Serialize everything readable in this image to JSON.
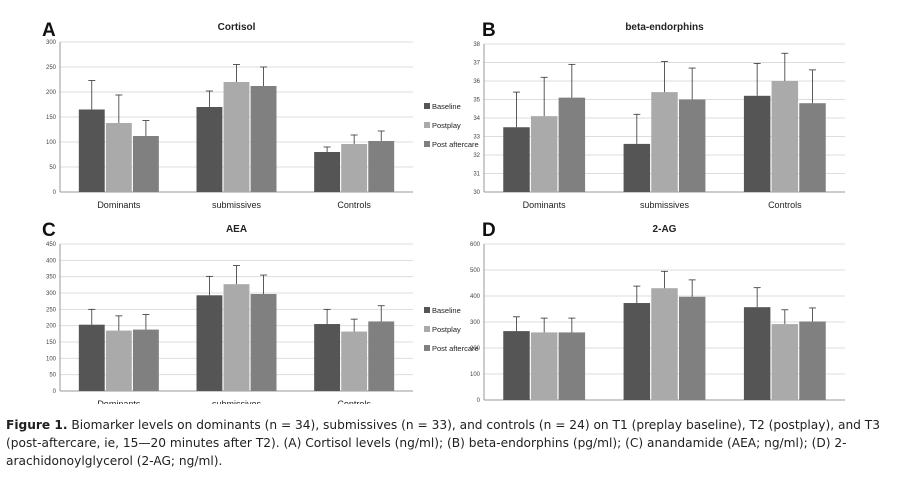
{
  "caption": {
    "label": "Figure 1.",
    "text": "Biomarker levels on dominants (n = 34), submissives (n = 33), and controls (n = 24) on T1 (preplay baseline), T2 (postplay), and T3 (post-aftercare, ie, 15—20 minutes after T2). (A) Cortisol levels (ng/ml); (B) beta-endorphins (pg/ml); (C) anandamide (AEA; ng/ml); (D) 2-arachidonoylglycerol (2-AG; ng/ml)."
  },
  "colors": {
    "baseline": "#555555",
    "postplay": "#aaaaaa",
    "post_aftercare": "#808080",
    "grid": "#dddddd",
    "axis": "#999999"
  },
  "chart_data": [
    {
      "panel": "A",
      "type": "bar",
      "title": "Cortisol",
      "categories": [
        "Dominants",
        "submissives",
        "Controls"
      ],
      "ylim": [
        0,
        300
      ],
      "yticks": [
        0,
        50,
        100,
        150,
        200,
        250,
        300
      ],
      "grid": true,
      "legend": "right",
      "series": [
        {
          "name": "Baseline",
          "values": [
            165,
            170,
            80
          ],
          "errors": [
            58,
            32,
            10
          ]
        },
        {
          "name": "Postplay",
          "values": [
            138,
            220,
            96
          ],
          "errors": [
            56,
            35,
            18
          ]
        },
        {
          "name": "Post aftercare",
          "values": [
            112,
            212,
            102
          ],
          "errors": [
            31,
            38,
            20
          ]
        }
      ]
    },
    {
      "panel": "B",
      "type": "bar",
      "title": "beta-endorphins",
      "categories": [
        "Dominants",
        "submissives",
        "Controls"
      ],
      "ylim": [
        30,
        38
      ],
      "yticks": [
        30,
        31,
        32,
        33,
        34,
        35,
        36,
        37,
        38
      ],
      "grid": true,
      "legend": "none",
      "series": [
        {
          "name": "Baseline",
          "values": [
            33.5,
            32.6,
            35.2
          ],
          "errors": [
            1.9,
            1.6,
            1.75
          ]
        },
        {
          "name": "Postplay",
          "values": [
            34.1,
            35.4,
            36.0
          ],
          "errors": [
            2.1,
            1.65,
            1.5
          ]
        },
        {
          "name": "Post aftercare",
          "values": [
            35.1,
            35.0,
            34.8
          ],
          "errors": [
            1.8,
            1.7,
            1.8
          ]
        }
      ]
    },
    {
      "panel": "C",
      "type": "bar",
      "title": "AEA",
      "categories": [
        "Dominants",
        "submissives",
        "Controls"
      ],
      "ylim": [
        0,
        450
      ],
      "yticks": [
        0,
        50,
        100,
        150,
        200,
        250,
        300,
        350,
        400,
        450
      ],
      "grid": true,
      "legend": "right",
      "series": [
        {
          "name": "Baseline",
          "values": [
            203,
            293,
            205
          ],
          "errors": [
            47,
            58,
            45
          ]
        },
        {
          "name": "Postplay",
          "values": [
            185,
            327,
            182
          ],
          "errors": [
            45,
            57,
            38
          ]
        },
        {
          "name": "Post aftercare",
          "values": [
            188,
            297,
            213
          ],
          "errors": [
            46,
            58,
            48
          ]
        }
      ]
    },
    {
      "panel": "D",
      "type": "bar",
      "title": "2-AG",
      "categories": [
        "Dominants",
        "submissives",
        "Controls"
      ],
      "ylim": [
        0,
        600
      ],
      "yticks": [
        0,
        100,
        200,
        300,
        400,
        500,
        600
      ],
      "grid": true,
      "legend": "none",
      "series": [
        {
          "name": "Baseline",
          "values": [
            265,
            373,
            357
          ],
          "errors": [
            55,
            65,
            75
          ]
        },
        {
          "name": "Postplay",
          "values": [
            260,
            430,
            292
          ],
          "errors": [
            55,
            65,
            55
          ]
        },
        {
          "name": "Post aftercare",
          "values": [
            260,
            397,
            302
          ],
          "errors": [
            55,
            65,
            52
          ]
        }
      ]
    }
  ]
}
